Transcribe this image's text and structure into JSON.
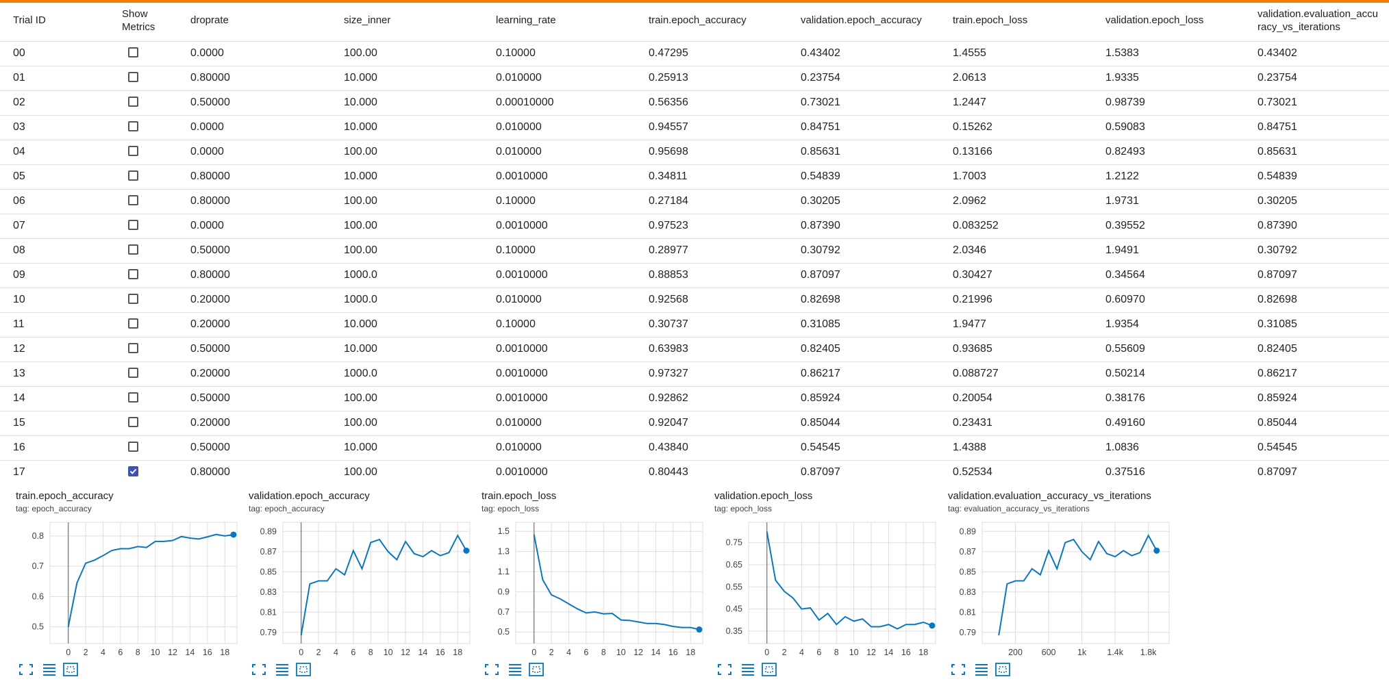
{
  "table": {
    "headers": [
      "Trial ID",
      "Show Metrics",
      "droprate",
      "size_inner",
      "learning_rate",
      "train.epoch_accuracy",
      "validation.epoch_accuracy",
      "train.epoch_loss",
      "validation.epoch_loss",
      "validation.evaluation_accuracy_vs_iterations"
    ],
    "rows": [
      [
        "00",
        "0.0000",
        "100.00",
        "0.10000",
        "0.47295",
        "0.43402",
        "1.4555",
        "1.5383",
        "0.43402"
      ],
      [
        "01",
        "0.80000",
        "10.000",
        "0.010000",
        "0.25913",
        "0.23754",
        "2.0613",
        "1.9335",
        "0.23754"
      ],
      [
        "02",
        "0.50000",
        "10.000",
        "0.00010000",
        "0.56356",
        "0.73021",
        "1.2447",
        "0.98739",
        "0.73021"
      ],
      [
        "03",
        "0.0000",
        "10.000",
        "0.010000",
        "0.94557",
        "0.84751",
        "0.15262",
        "0.59083",
        "0.84751"
      ],
      [
        "04",
        "0.0000",
        "100.00",
        "0.010000",
        "0.95698",
        "0.85631",
        "0.13166",
        "0.82493",
        "0.85631"
      ],
      [
        "05",
        "0.80000",
        "10.000",
        "0.0010000",
        "0.34811",
        "0.54839",
        "1.7003",
        "1.2122",
        "0.54839"
      ],
      [
        "06",
        "0.80000",
        "100.00",
        "0.10000",
        "0.27184",
        "0.30205",
        "2.0962",
        "1.9731",
        "0.30205"
      ],
      [
        "07",
        "0.0000",
        "100.00",
        "0.0010000",
        "0.97523",
        "0.87390",
        "0.083252",
        "0.39552",
        "0.87390"
      ],
      [
        "08",
        "0.50000",
        "100.00",
        "0.10000",
        "0.28977",
        "0.30792",
        "2.0346",
        "1.9491",
        "0.30792"
      ],
      [
        "09",
        "0.80000",
        "1000.0",
        "0.0010000",
        "0.88853",
        "0.87097",
        "0.30427",
        "0.34564",
        "0.87097"
      ],
      [
        "10",
        "0.20000",
        "1000.0",
        "0.010000",
        "0.92568",
        "0.82698",
        "0.21996",
        "0.60970",
        "0.82698"
      ],
      [
        "11",
        "0.20000",
        "10.000",
        "0.10000",
        "0.30737",
        "0.31085",
        "1.9477",
        "1.9354",
        "0.31085"
      ],
      [
        "12",
        "0.50000",
        "10.000",
        "0.0010000",
        "0.63983",
        "0.82405",
        "0.93685",
        "0.55609",
        "0.82405"
      ],
      [
        "13",
        "0.20000",
        "1000.0",
        "0.0010000",
        "0.97327",
        "0.86217",
        "0.088727",
        "0.50214",
        "0.86217"
      ],
      [
        "14",
        "0.50000",
        "100.00",
        "0.0010000",
        "0.92862",
        "0.85924",
        "0.20054",
        "0.38176",
        "0.85924"
      ],
      [
        "15",
        "0.20000",
        "100.00",
        "0.010000",
        "0.92047",
        "0.85044",
        "0.23431",
        "0.49160",
        "0.85044"
      ],
      [
        "16",
        "0.50000",
        "10.000",
        "0.010000",
        "0.43840",
        "0.54545",
        "1.4388",
        "1.0836",
        "0.54545"
      ],
      [
        "17",
        "0.80000",
        "100.00",
        "0.0010000",
        "0.80443",
        "0.87097",
        "0.52534",
        "0.37516",
        "0.87097"
      ]
    ],
    "show_metrics": [
      false,
      false,
      false,
      false,
      false,
      false,
      false,
      false,
      false,
      false,
      false,
      false,
      false,
      false,
      false,
      false,
      false,
      true
    ]
  },
  "chart_data": [
    {
      "type": "line",
      "title": "train.epoch_accuracy",
      "subtitle": "tag: epoch_accuracy",
      "color": "#0877bd",
      "x": [
        0,
        1,
        2,
        3,
        4,
        5,
        6,
        7,
        8,
        9,
        10,
        11,
        12,
        13,
        14,
        15,
        16,
        17,
        18,
        19
      ],
      "values": [
        0.5,
        0.645,
        0.71,
        0.72,
        0.735,
        0.752,
        0.758,
        0.758,
        0.765,
        0.762,
        0.782,
        0.782,
        0.785,
        0.798,
        0.793,
        0.79,
        0.797,
        0.805,
        0.8,
        0.80443
      ],
      "xlim": [
        -2.1,
        19.4
      ],
      "ylim": [
        0.445,
        0.845
      ],
      "xticks": [
        0,
        2,
        4,
        6,
        8,
        10,
        12,
        14,
        16,
        18
      ],
      "yticks": [
        0.5,
        0.6,
        0.7,
        0.8
      ],
      "grid": true
    },
    {
      "type": "line",
      "title": "validation.epoch_accuracy",
      "subtitle": "tag: epoch_accuracy",
      "color": "#0877bd",
      "x": [
        0,
        1,
        2,
        3,
        4,
        5,
        6,
        7,
        8,
        9,
        10,
        11,
        12,
        13,
        14,
        15,
        16,
        17,
        18,
        19
      ],
      "values": [
        0.787,
        0.838,
        0.841,
        0.841,
        0.853,
        0.847,
        0.871,
        0.853,
        0.879,
        0.882,
        0.87,
        0.862,
        0.88,
        0.868,
        0.865,
        0.871,
        0.866,
        0.869,
        0.886,
        0.87097
      ],
      "xlim": [
        -2.1,
        19.4
      ],
      "ylim": [
        0.779,
        0.899
      ],
      "xticks": [
        0,
        2,
        4,
        6,
        8,
        10,
        12,
        14,
        16,
        18
      ],
      "yticks": [
        0.79,
        0.81,
        0.83,
        0.85,
        0.87,
        0.89
      ],
      "grid": true
    },
    {
      "type": "line",
      "title": "train.epoch_loss",
      "subtitle": "tag: epoch_loss",
      "color": "#0877bd",
      "x": [
        0,
        1,
        2,
        3,
        4,
        5,
        6,
        7,
        8,
        9,
        10,
        11,
        12,
        13,
        14,
        15,
        16,
        17,
        18,
        19
      ],
      "values": [
        1.47,
        1.02,
        0.87,
        0.83,
        0.78,
        0.73,
        0.69,
        0.7,
        0.68,
        0.685,
        0.62,
        0.615,
        0.6,
        0.585,
        0.585,
        0.575,
        0.555,
        0.545,
        0.545,
        0.52534
      ],
      "xlim": [
        -2.1,
        19.4
      ],
      "ylim": [
        0.386,
        1.59
      ],
      "xticks": [
        0,
        2,
        4,
        6,
        8,
        10,
        12,
        14,
        16,
        18
      ],
      "yticks": [
        0.5,
        0.7,
        0.9,
        1.1,
        1.3,
        1.5
      ],
      "grid": true
    },
    {
      "type": "line",
      "title": "validation.epoch_loss",
      "subtitle": "tag: epoch_loss",
      "color": "#0877bd",
      "x": [
        0,
        1,
        2,
        3,
        4,
        5,
        6,
        7,
        8,
        9,
        10,
        11,
        12,
        13,
        14,
        15,
        16,
        17,
        18,
        19
      ],
      "values": [
        0.8,
        0.58,
        0.53,
        0.5,
        0.45,
        0.455,
        0.4,
        0.43,
        0.38,
        0.415,
        0.395,
        0.405,
        0.37,
        0.37,
        0.38,
        0.36,
        0.38,
        0.38,
        0.39,
        0.37516
      ],
      "xlim": [
        -2.1,
        19.4
      ],
      "ylim": [
        0.294,
        0.842
      ],
      "xticks": [
        0,
        2,
        4,
        6,
        8,
        10,
        12,
        14,
        16,
        18
      ],
      "yticks": [
        0.35,
        0.45,
        0.55,
        0.65,
        0.75
      ],
      "grid": true
    },
    {
      "type": "line",
      "title": "validation.evaluation_accuracy_vs_iterations",
      "subtitle": "tag: evaluation_accuracy_vs_iterations",
      "color": "#0877bd",
      "x": [
        0,
        100,
        200,
        300,
        400,
        500,
        600,
        700,
        800,
        900,
        1000,
        1100,
        1200,
        1300,
        1400,
        1500,
        1600,
        1700,
        1800,
        1900
      ],
      "values": [
        0.787,
        0.838,
        0.841,
        0.841,
        0.853,
        0.847,
        0.871,
        0.853,
        0.879,
        0.882,
        0.87,
        0.862,
        0.88,
        0.868,
        0.865,
        0.871,
        0.866,
        0.869,
        0.886,
        0.87097
      ],
      "xlim": [
        -200,
        2050
      ],
      "ylim": [
        0.779,
        0.899
      ],
      "xticks": [
        200,
        600,
        {
          "value": 1000,
          "label": "1k"
        },
        {
          "value": 1400,
          "label": "1.4k"
        },
        {
          "value": 1800,
          "label": "1.8k"
        }
      ],
      "yticks": [
        0.79,
        0.81,
        0.83,
        0.85,
        0.87,
        0.89
      ],
      "grid": true
    }
  ]
}
